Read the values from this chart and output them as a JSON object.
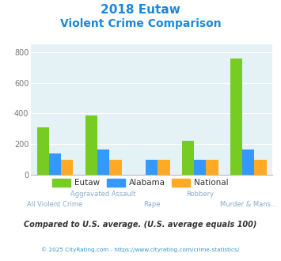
{
  "title_line1": "2018 Eutaw",
  "title_line2": "Violent Crime Comparison",
  "categories": [
    "All Violent Crime",
    "Aggravated Assault",
    "Rape",
    "Robbery",
    "Murder & Mans..."
  ],
  "eutaw": [
    310,
    385,
    0,
    220,
    760
  ],
  "alabama": [
    140,
    163,
    100,
    100,
    163
  ],
  "national": [
    100,
    100,
    100,
    100,
    100
  ],
  "color_eutaw": "#77cc22",
  "color_alabama": "#3399ff",
  "color_national": "#ffaa22",
  "bg_color": "#e5f2f5",
  "ylim": [
    0,
    850
  ],
  "yticks": [
    0,
    200,
    400,
    600,
    800
  ],
  "title_color": "#1a88dd",
  "xlabel_color": "#88aacc",
  "footer_text": "Compared to U.S. average. (U.S. average equals 100)",
  "footer_color": "#333333",
  "credit_text": "© 2025 CityRating.com - https://www.cityrating.com/crime-statistics/",
  "credit_color": "#3399cc",
  "cat_labels_top": [
    "",
    "Aggravated Assault",
    "",
    "Robbery",
    ""
  ],
  "cat_labels_bottom": [
    "All Violent Crime",
    "",
    "Rape",
    "",
    "Murder & Mans..."
  ]
}
